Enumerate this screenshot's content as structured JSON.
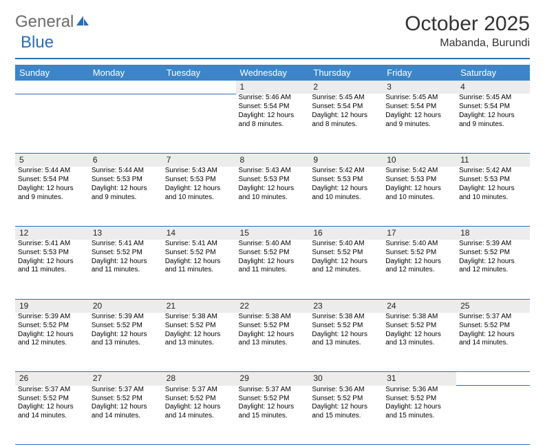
{
  "brand": {
    "part1": "General",
    "part2": "Blue"
  },
  "title": "October 2025",
  "location": "Mabanda, Burundi",
  "colors": {
    "header_bar": "#3d85c6",
    "rule": "#2a6db5",
    "daynum_bg": "#ececec",
    "text": "#000000",
    "bg": "#ffffff"
  },
  "weekdays": [
    "Sunday",
    "Monday",
    "Tuesday",
    "Wednesday",
    "Thursday",
    "Friday",
    "Saturday"
  ],
  "weeks": [
    [
      null,
      null,
      null,
      {
        "n": "1",
        "sunrise": "5:46 AM",
        "sunset": "5:54 PM",
        "daylight": "12 hours and 8 minutes."
      },
      {
        "n": "2",
        "sunrise": "5:45 AM",
        "sunset": "5:54 PM",
        "daylight": "12 hours and 8 minutes."
      },
      {
        "n": "3",
        "sunrise": "5:45 AM",
        "sunset": "5:54 PM",
        "daylight": "12 hours and 9 minutes."
      },
      {
        "n": "4",
        "sunrise": "5:45 AM",
        "sunset": "5:54 PM",
        "daylight": "12 hours and 9 minutes."
      }
    ],
    [
      {
        "n": "5",
        "sunrise": "5:44 AM",
        "sunset": "5:54 PM",
        "daylight": "12 hours and 9 minutes."
      },
      {
        "n": "6",
        "sunrise": "5:44 AM",
        "sunset": "5:53 PM",
        "daylight": "12 hours and 9 minutes."
      },
      {
        "n": "7",
        "sunrise": "5:43 AM",
        "sunset": "5:53 PM",
        "daylight": "12 hours and 10 minutes."
      },
      {
        "n": "8",
        "sunrise": "5:43 AM",
        "sunset": "5:53 PM",
        "daylight": "12 hours and 10 minutes."
      },
      {
        "n": "9",
        "sunrise": "5:42 AM",
        "sunset": "5:53 PM",
        "daylight": "12 hours and 10 minutes."
      },
      {
        "n": "10",
        "sunrise": "5:42 AM",
        "sunset": "5:53 PM",
        "daylight": "12 hours and 10 minutes."
      },
      {
        "n": "11",
        "sunrise": "5:42 AM",
        "sunset": "5:53 PM",
        "daylight": "12 hours and 10 minutes."
      }
    ],
    [
      {
        "n": "12",
        "sunrise": "5:41 AM",
        "sunset": "5:53 PM",
        "daylight": "12 hours and 11 minutes."
      },
      {
        "n": "13",
        "sunrise": "5:41 AM",
        "sunset": "5:52 PM",
        "daylight": "12 hours and 11 minutes."
      },
      {
        "n": "14",
        "sunrise": "5:41 AM",
        "sunset": "5:52 PM",
        "daylight": "12 hours and 11 minutes."
      },
      {
        "n": "15",
        "sunrise": "5:40 AM",
        "sunset": "5:52 PM",
        "daylight": "12 hours and 11 minutes."
      },
      {
        "n": "16",
        "sunrise": "5:40 AM",
        "sunset": "5:52 PM",
        "daylight": "12 hours and 12 minutes."
      },
      {
        "n": "17",
        "sunrise": "5:40 AM",
        "sunset": "5:52 PM",
        "daylight": "12 hours and 12 minutes."
      },
      {
        "n": "18",
        "sunrise": "5:39 AM",
        "sunset": "5:52 PM",
        "daylight": "12 hours and 12 minutes."
      }
    ],
    [
      {
        "n": "19",
        "sunrise": "5:39 AM",
        "sunset": "5:52 PM",
        "daylight": "12 hours and 12 minutes."
      },
      {
        "n": "20",
        "sunrise": "5:39 AM",
        "sunset": "5:52 PM",
        "daylight": "12 hours and 13 minutes."
      },
      {
        "n": "21",
        "sunrise": "5:38 AM",
        "sunset": "5:52 PM",
        "daylight": "12 hours and 13 minutes."
      },
      {
        "n": "22",
        "sunrise": "5:38 AM",
        "sunset": "5:52 PM",
        "daylight": "12 hours and 13 minutes."
      },
      {
        "n": "23",
        "sunrise": "5:38 AM",
        "sunset": "5:52 PM",
        "daylight": "12 hours and 13 minutes."
      },
      {
        "n": "24",
        "sunrise": "5:38 AM",
        "sunset": "5:52 PM",
        "daylight": "12 hours and 13 minutes."
      },
      {
        "n": "25",
        "sunrise": "5:37 AM",
        "sunset": "5:52 PM",
        "daylight": "12 hours and 14 minutes."
      }
    ],
    [
      {
        "n": "26",
        "sunrise": "5:37 AM",
        "sunset": "5:52 PM",
        "daylight": "12 hours and 14 minutes."
      },
      {
        "n": "27",
        "sunrise": "5:37 AM",
        "sunset": "5:52 PM",
        "daylight": "12 hours and 14 minutes."
      },
      {
        "n": "28",
        "sunrise": "5:37 AM",
        "sunset": "5:52 PM",
        "daylight": "12 hours and 14 minutes."
      },
      {
        "n": "29",
        "sunrise": "5:37 AM",
        "sunset": "5:52 PM",
        "daylight": "12 hours and 15 minutes."
      },
      {
        "n": "30",
        "sunrise": "5:36 AM",
        "sunset": "5:52 PM",
        "daylight": "12 hours and 15 minutes."
      },
      {
        "n": "31",
        "sunrise": "5:36 AM",
        "sunset": "5:52 PM",
        "daylight": "12 hours and 15 minutes."
      },
      null
    ]
  ],
  "labels": {
    "sunrise": "Sunrise:",
    "sunset": "Sunset:",
    "daylight": "Daylight:"
  }
}
